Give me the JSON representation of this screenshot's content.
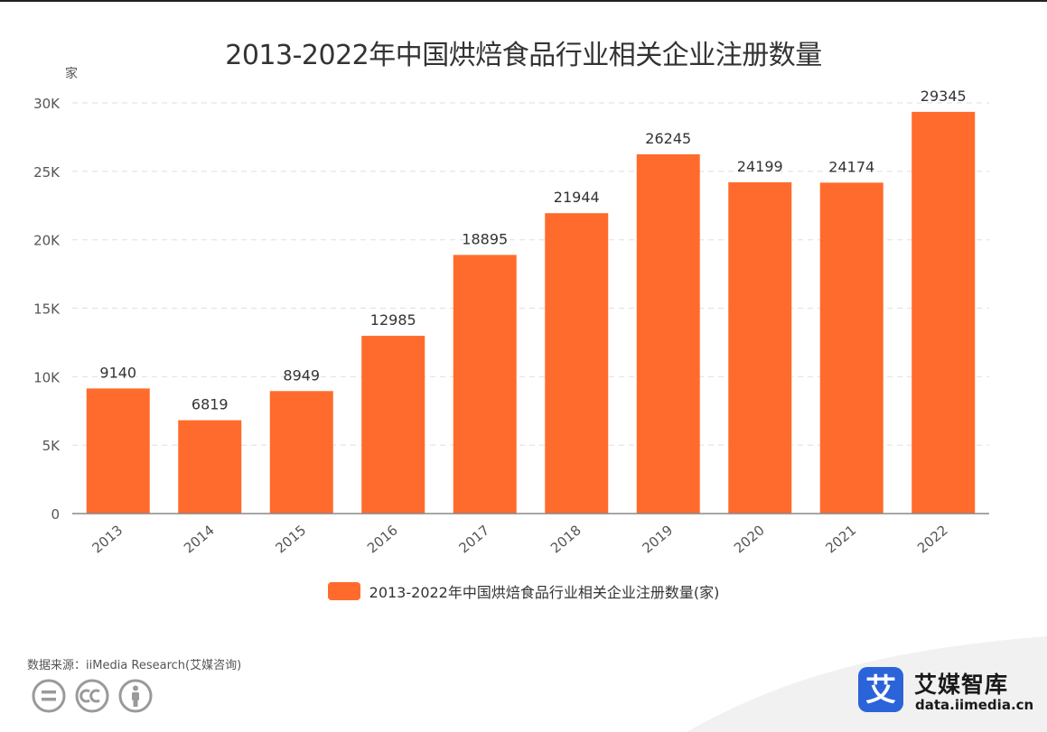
{
  "title": "2013-2022年中国烘焙食品行业相关企业注册数量",
  "unit_label": "家",
  "colors": {
    "bar": "#ff6b2c",
    "grid": "#e3e3e3",
    "axis": "#888888",
    "brand": "#2b63d9"
  },
  "chart_data": {
    "type": "bar",
    "title": "2013-2022年中国烘焙食品行业相关企业注册数量",
    "ylabel": "家",
    "categories": [
      "2013",
      "2014",
      "2015",
      "2016",
      "2017",
      "2018",
      "2019",
      "2020",
      "2021",
      "2022"
    ],
    "series": [
      {
        "name": "2013-2022年中国烘焙食品行业相关企业注册数量(家)",
        "values": [
          9140,
          6819,
          8949,
          12985,
          18895,
          21944,
          26245,
          24199,
          24174,
          29345
        ]
      }
    ],
    "ylim": [
      0,
      30000
    ],
    "yticks": [
      0,
      5000,
      10000,
      15000,
      20000,
      25000,
      30000
    ],
    "ytick_labels": [
      "0",
      "5K",
      "10K",
      "15K",
      "20K",
      "25K",
      "30K"
    ],
    "grid": true,
    "legend": "bottom"
  },
  "legend_label": "2013-2022年中国烘焙食品行业相关企业注册数量(家)",
  "source": "数据来源：iiMedia Research(艾媒咨询)",
  "license_icons": [
    "equal-icon",
    "cc-icon",
    "attribution-icon"
  ],
  "brand": {
    "logo_char": "艾",
    "name": "艾媒智库",
    "url": "data.iimedia.cn"
  }
}
